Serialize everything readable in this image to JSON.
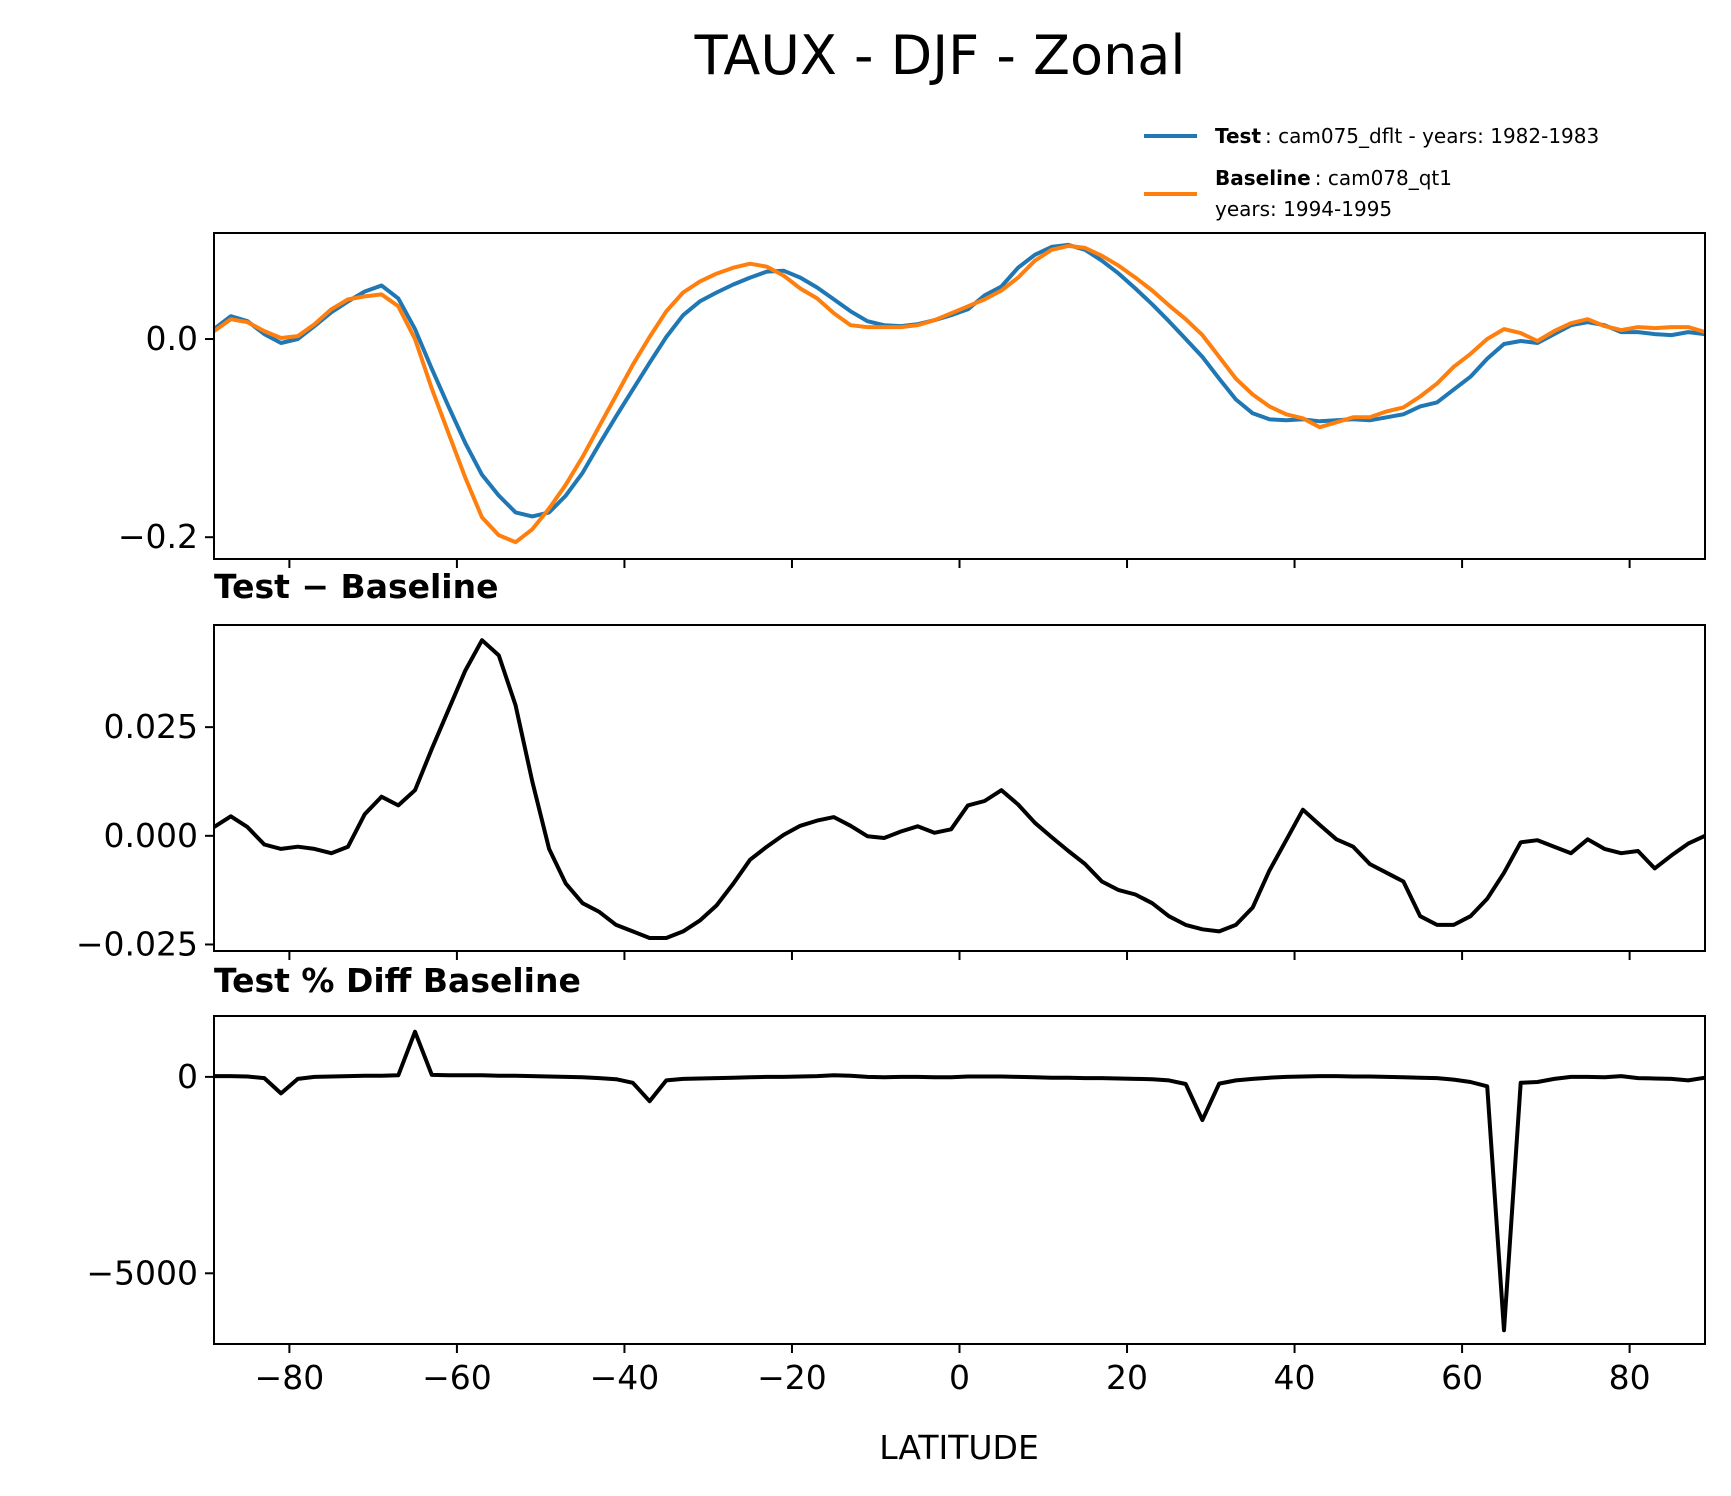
{
  "title": "TAUX - DJF - Zonal",
  "legend": {
    "test_bold": "Test",
    "test_text": ": cam075_dflt - years: 1982-1983",
    "baseline_bold": "Baseline",
    "baseline_text": ": cam078_qt1",
    "baseline_years": "years: 1994-1995"
  },
  "colors": {
    "test": "#1f77b4",
    "baseline": "#ff7f0e",
    "diff": "#000000"
  },
  "chart_data": [
    {
      "type": "line",
      "xlim": [
        -89,
        89
      ],
      "ylim": [
        -0.222,
        0.107
      ],
      "yticks": [
        0.0,
        -0.2
      ],
      "ytick_labels": [
        "0.0",
        "−0.2"
      ],
      "x": [
        -89,
        -87,
        -85,
        -83,
        -81,
        -79,
        -77,
        -75,
        -73,
        -71,
        -69,
        -67,
        -65,
        -63,
        -61,
        -59,
        -57,
        -55,
        -53,
        -51,
        -49,
        -47,
        -45,
        -43,
        -41,
        -39,
        -37,
        -35,
        -33,
        -31,
        -29,
        -27,
        -25,
        -23,
        -21,
        -19,
        -17,
        -15,
        -13,
        -11,
        -9,
        -7,
        -5,
        -3,
        -1,
        1,
        3,
        5,
        7,
        9,
        11,
        13,
        15,
        17,
        19,
        21,
        23,
        25,
        27,
        29,
        31,
        33,
        35,
        37,
        39,
        41,
        43,
        45,
        47,
        49,
        51,
        53,
        55,
        57,
        59,
        61,
        63,
        65,
        67,
        69,
        71,
        73,
        75,
        77,
        79,
        81,
        83,
        85,
        87,
        89
      ],
      "series": [
        {
          "name": "Test",
          "values": [
            0.01,
            0.023,
            0.018,
            0.005,
            -0.004,
            0.0,
            0.013,
            0.027,
            0.038,
            0.048,
            0.054,
            0.041,
            0.01,
            -0.03,
            -0.068,
            -0.105,
            -0.137,
            -0.158,
            -0.175,
            -0.179,
            -0.175,
            -0.158,
            -0.135,
            -0.106,
            -0.078,
            -0.051,
            -0.024,
            0.002,
            0.024,
            0.038,
            0.047,
            0.055,
            0.062,
            0.068,
            0.069,
            0.062,
            0.052,
            0.04,
            0.028,
            0.018,
            0.014,
            0.013,
            0.015,
            0.019,
            0.024,
            0.03,
            0.044,
            0.053,
            0.072,
            0.085,
            0.093,
            0.095,
            0.09,
            0.079,
            0.066,
            0.051,
            0.035,
            0.018,
            0.0,
            -0.018,
            -0.04,
            -0.061,
            -0.075,
            -0.081,
            -0.082,
            -0.081,
            -0.083,
            -0.082,
            -0.081,
            -0.082,
            -0.079,
            -0.076,
            -0.068,
            -0.064,
            -0.051,
            -0.038,
            -0.02,
            -0.005,
            -0.002,
            -0.004,
            0.005,
            0.014,
            0.017,
            0.014,
            0.007,
            0.007,
            0.005,
            0.004,
            0.007,
            0.005
          ]
        },
        {
          "name": "Baseline",
          "values": [
            0.008,
            0.02,
            0.017,
            0.008,
            0.001,
            0.003,
            0.015,
            0.03,
            0.04,
            0.043,
            0.045,
            0.033,
            0.0,
            -0.05,
            -0.095,
            -0.14,
            -0.18,
            -0.198,
            -0.205,
            -0.192,
            -0.171,
            -0.147,
            -0.119,
            -0.088,
            -0.057,
            -0.026,
            0.002,
            0.028,
            0.047,
            0.058,
            0.066,
            0.072,
            0.076,
            0.073,
            0.064,
            0.051,
            0.041,
            0.026,
            0.014,
            0.012,
            0.012,
            0.012,
            0.014,
            0.019,
            0.026,
            0.033,
            0.04,
            0.049,
            0.062,
            0.079,
            0.09,
            0.094,
            0.092,
            0.084,
            0.074,
            0.062,
            0.049,
            0.034,
            0.02,
            0.004,
            -0.018,
            -0.04,
            -0.056,
            -0.068,
            -0.076,
            -0.08,
            -0.089,
            -0.084,
            -0.079,
            -0.079,
            -0.073,
            -0.069,
            -0.058,
            -0.045,
            -0.028,
            -0.015,
            0.0,
            0.01,
            0.006,
            -0.002,
            0.008,
            0.016,
            0.02,
            0.013,
            0.009,
            0.012,
            0.011,
            0.012,
            0.012,
            0.007
          ]
        }
      ]
    },
    {
      "type": "line",
      "title": "Test − Baseline",
      "xlim": [
        -89,
        89
      ],
      "ylim": [
        -0.0265,
        0.0485
      ],
      "yticks": [
        0.025,
        0.0,
        -0.025
      ],
      "ytick_labels": [
        "0.025",
        "0.000",
        "−0.025"
      ],
      "x": [
        -89,
        -87,
        -85,
        -83,
        -81,
        -79,
        -77,
        -75,
        -73,
        -71,
        -69,
        -67,
        -65,
        -63,
        -61,
        -59,
        -57,
        -55,
        -53,
        -51,
        -49,
        -47,
        -45,
        -43,
        -41,
        -39,
        -37,
        -35,
        -33,
        -31,
        -29,
        -27,
        -25,
        -23,
        -21,
        -19,
        -17,
        -15,
        -13,
        -11,
        -9,
        -7,
        -5,
        -3,
        -1,
        1,
        3,
        5,
        7,
        9,
        11,
        13,
        15,
        17,
        19,
        21,
        23,
        25,
        27,
        29,
        31,
        33,
        35,
        37,
        39,
        41,
        43,
        45,
        47,
        49,
        51,
        53,
        55,
        57,
        59,
        61,
        63,
        65,
        67,
        69,
        71,
        73,
        75,
        77,
        79,
        81,
        83,
        85,
        87,
        89
      ],
      "series": [
        {
          "values": [
            0.002,
            0.0045,
            0.002,
            -0.002,
            -0.003,
            -0.0025,
            -0.003,
            -0.004,
            -0.0025,
            0.005,
            0.009,
            0.007,
            0.0105,
            0.02,
            0.029,
            0.038,
            0.045,
            0.0415,
            0.03,
            0.0125,
            -0.003,
            -0.011,
            -0.0155,
            -0.0175,
            -0.0205,
            -0.022,
            -0.0235,
            -0.0235,
            -0.022,
            -0.0195,
            -0.016,
            -0.011,
            -0.0055,
            -0.0025,
            0.0002,
            0.0023,
            0.0035,
            0.0043,
            0.0023,
            -0.0001,
            -0.0005,
            0.001,
            0.0022,
            0.0007,
            0.0015,
            0.007,
            0.008,
            0.0105,
            0.0072,
            0.003,
            -0.0003,
            -0.0035,
            -0.0065,
            -0.0105,
            -0.0125,
            -0.0135,
            -0.0155,
            -0.0185,
            -0.0205,
            -0.0215,
            -0.022,
            -0.0205,
            -0.0165,
            -0.008,
            -0.001,
            0.006,
            0.0025,
            -0.0008,
            -0.0025,
            -0.0065,
            -0.0085,
            -0.0105,
            -0.0185,
            -0.0205,
            -0.0205,
            -0.0185,
            -0.0145,
            -0.0085,
            -0.0015,
            -0.001,
            -0.0025,
            -0.004,
            -0.0008,
            -0.003,
            -0.004,
            -0.0035,
            -0.0075,
            -0.0045,
            -0.0018,
            0.0
          ]
        }
      ]
    },
    {
      "type": "line",
      "title": "Test % Diff Baseline",
      "xlabel": "LATITUDE",
      "xlim": [
        -89,
        89
      ],
      "ylim": [
        -6800,
        1550
      ],
      "yticks": [
        0,
        -5000
      ],
      "ytick_labels": [
        "0",
        "−5000"
      ],
      "xticks": [
        -80,
        -60,
        -40,
        -20,
        0,
        20,
        40,
        60,
        80
      ],
      "xtick_labels": [
        "−80",
        "−60",
        "−40",
        "−20",
        "0",
        "20",
        "40",
        "60",
        "80"
      ],
      "x": [
        -89,
        -87,
        -85,
        -83,
        -81,
        -79,
        -77,
        -75,
        -73,
        -71,
        -69,
        -67,
        -65,
        -63,
        -61,
        -59,
        -57,
        -55,
        -53,
        -51,
        -49,
        -47,
        -45,
        -43,
        -41,
        -39,
        -37,
        -35,
        -33,
        -31,
        -29,
        -27,
        -25,
        -23,
        -21,
        -19,
        -17,
        -15,
        -13,
        -11,
        -9,
        -7,
        -5,
        -3,
        -1,
        1,
        3,
        5,
        7,
        9,
        11,
        13,
        15,
        17,
        19,
        21,
        23,
        25,
        27,
        29,
        31,
        33,
        35,
        37,
        39,
        41,
        43,
        45,
        47,
        49,
        51,
        53,
        55,
        57,
        59,
        61,
        63,
        65,
        67,
        69,
        71,
        73,
        75,
        77,
        79,
        81,
        83,
        85,
        87,
        89
      ],
      "series": [
        {
          "values": [
            20,
            20,
            10,
            -30,
            -420,
            -50,
            0,
            10,
            20,
            30,
            30,
            40,
            1150,
            50,
            40,
            40,
            40,
            30,
            30,
            20,
            10,
            0,
            -10,
            -30,
            -60,
            -150,
            -620,
            -90,
            -50,
            -40,
            -30,
            -20,
            -10,
            0,
            0,
            10,
            20,
            40,
            30,
            0,
            -10,
            0,
            0,
            -10,
            -10,
            10,
            10,
            10,
            0,
            -10,
            -20,
            -20,
            -30,
            -30,
            -40,
            -50,
            -60,
            -90,
            -180,
            -1100,
            -170,
            -90,
            -50,
            -20,
            0,
            10,
            20,
            20,
            10,
            10,
            0,
            -10,
            -20,
            -30,
            -70,
            -130,
            -240,
            -6450,
            -150,
            -130,
            -50,
            0,
            0,
            -10,
            20,
            -30,
            -40,
            -50,
            -90,
            -20
          ]
        }
      ]
    }
  ]
}
